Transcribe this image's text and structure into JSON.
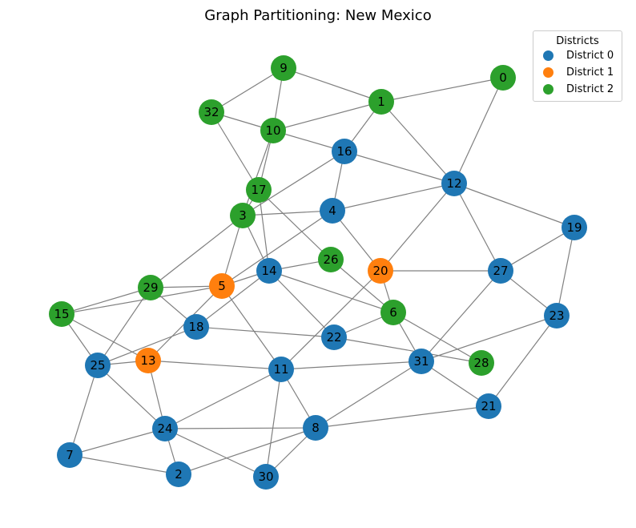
{
  "title": "Graph Partitioning: New Mexico",
  "legend": {
    "title": "Districts",
    "items": [
      {
        "label": "District 0",
        "color": "#1f77b4"
      },
      {
        "label": "District 1",
        "color": "#ff7f0e"
      },
      {
        "label": "District 2",
        "color": "#2ca02c"
      }
    ]
  },
  "edge_color": "#808080",
  "nodes": [
    {
      "id": "0",
      "district": 2
    },
    {
      "id": "1",
      "district": 2
    },
    {
      "id": "2",
      "district": 0
    },
    {
      "id": "3",
      "district": 2
    },
    {
      "id": "4",
      "district": 0
    },
    {
      "id": "5",
      "district": 1
    },
    {
      "id": "6",
      "district": 2
    },
    {
      "id": "7",
      "district": 0
    },
    {
      "id": "8",
      "district": 0
    },
    {
      "id": "9",
      "district": 2
    },
    {
      "id": "10",
      "district": 2
    },
    {
      "id": "11",
      "district": 0
    },
    {
      "id": "12",
      "district": 0
    },
    {
      "id": "13",
      "district": 1
    },
    {
      "id": "14",
      "district": 0
    },
    {
      "id": "15",
      "district": 2
    },
    {
      "id": "16",
      "district": 0
    },
    {
      "id": "17",
      "district": 2
    },
    {
      "id": "18",
      "district": 0
    },
    {
      "id": "19",
      "district": 0
    },
    {
      "id": "20",
      "district": 1
    },
    {
      "id": "21",
      "district": 0
    },
    {
      "id": "22",
      "district": 0
    },
    {
      "id": "23",
      "district": 0
    },
    {
      "id": "24",
      "district": 0
    },
    {
      "id": "25",
      "district": 0
    },
    {
      "id": "26",
      "district": 2
    },
    {
      "id": "27",
      "district": 0
    },
    {
      "id": "28",
      "district": 2
    },
    {
      "id": "29",
      "district": 2
    },
    {
      "id": "30",
      "district": 0
    },
    {
      "id": "31",
      "district": 0
    },
    {
      "id": "32",
      "district": 2
    }
  ],
  "edges": [
    [
      "9",
      "32"
    ],
    [
      "9",
      "1"
    ],
    [
      "9",
      "10"
    ],
    [
      "32",
      "10"
    ],
    [
      "32",
      "17"
    ],
    [
      "10",
      "1"
    ],
    [
      "10",
      "16"
    ],
    [
      "10",
      "17"
    ],
    [
      "10",
      "3"
    ],
    [
      "1",
      "0"
    ],
    [
      "1",
      "16"
    ],
    [
      "1",
      "12"
    ],
    [
      "0",
      "12"
    ],
    [
      "16",
      "12"
    ],
    [
      "16",
      "4"
    ],
    [
      "16",
      "3"
    ],
    [
      "12",
      "4"
    ],
    [
      "12",
      "20"
    ],
    [
      "12",
      "27"
    ],
    [
      "12",
      "19"
    ],
    [
      "19",
      "27"
    ],
    [
      "19",
      "23"
    ],
    [
      "17",
      "3"
    ],
    [
      "17",
      "14"
    ],
    [
      "17",
      "26"
    ],
    [
      "3",
      "4"
    ],
    [
      "3",
      "5"
    ],
    [
      "3",
      "29"
    ],
    [
      "4",
      "20"
    ],
    [
      "4",
      "5"
    ],
    [
      "20",
      "27"
    ],
    [
      "20",
      "11"
    ],
    [
      "20",
      "6"
    ],
    [
      "27",
      "23"
    ],
    [
      "27",
      "31"
    ],
    [
      "23",
      "31"
    ],
    [
      "23",
      "21"
    ],
    [
      "29",
      "5"
    ],
    [
      "29",
      "15"
    ],
    [
      "29",
      "18"
    ],
    [
      "29",
      "25"
    ],
    [
      "5",
      "15"
    ],
    [
      "5",
      "14"
    ],
    [
      "5",
      "13"
    ],
    [
      "5",
      "11"
    ],
    [
      "14",
      "26"
    ],
    [
      "14",
      "22"
    ],
    [
      "14",
      "6"
    ],
    [
      "14",
      "3"
    ],
    [
      "14",
      "18"
    ],
    [
      "26",
      "6"
    ],
    [
      "6",
      "22"
    ],
    [
      "6",
      "31"
    ],
    [
      "6",
      "28"
    ],
    [
      "22",
      "28"
    ],
    [
      "22",
      "18"
    ],
    [
      "15",
      "25"
    ],
    [
      "15",
      "13"
    ],
    [
      "13",
      "25"
    ],
    [
      "13",
      "24"
    ],
    [
      "13",
      "11"
    ],
    [
      "18",
      "25"
    ],
    [
      "11",
      "31"
    ],
    [
      "11",
      "24"
    ],
    [
      "11",
      "8"
    ],
    [
      "11",
      "30"
    ],
    [
      "31",
      "8"
    ],
    [
      "31",
      "21"
    ],
    [
      "25",
      "24"
    ],
    [
      "25",
      "7"
    ],
    [
      "24",
      "7"
    ],
    [
      "24",
      "2"
    ],
    [
      "24",
      "30"
    ],
    [
      "24",
      "8"
    ],
    [
      "7",
      "2"
    ],
    [
      "2",
      "8"
    ],
    [
      "30",
      "8"
    ],
    [
      "8",
      "21"
    ]
  ]
}
